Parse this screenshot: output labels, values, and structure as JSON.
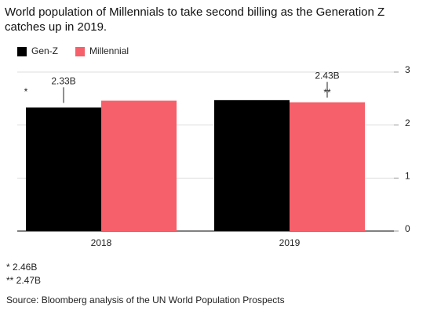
{
  "chart_data": {
    "type": "bar",
    "title": "World population of Millennials to take second billing as the Generation Z catches up in 2019.",
    "categories": [
      "2018",
      "2019"
    ],
    "series": [
      {
        "name": "Gen-Z",
        "color": "#000000",
        "values": [
          2.33,
          2.47
        ],
        "value_labels": [
          "2.33B",
          null
        ]
      },
      {
        "name": "Millennial",
        "color": "#f5606a",
        "values": [
          2.46,
          2.43
        ],
        "value_labels": [
          null,
          "2.43B"
        ]
      }
    ],
    "markers": [
      "*",
      "**"
    ],
    "ylim": [
      0,
      3
    ],
    "yticks": [
      0,
      1,
      2,
      3
    ],
    "grid": true,
    "y_axis_side": "right",
    "footnotes": [
      "* 2.46B",
      "** 2.47B"
    ],
    "source": "Source: Bloomberg analysis of the UN World Population Prospects"
  }
}
